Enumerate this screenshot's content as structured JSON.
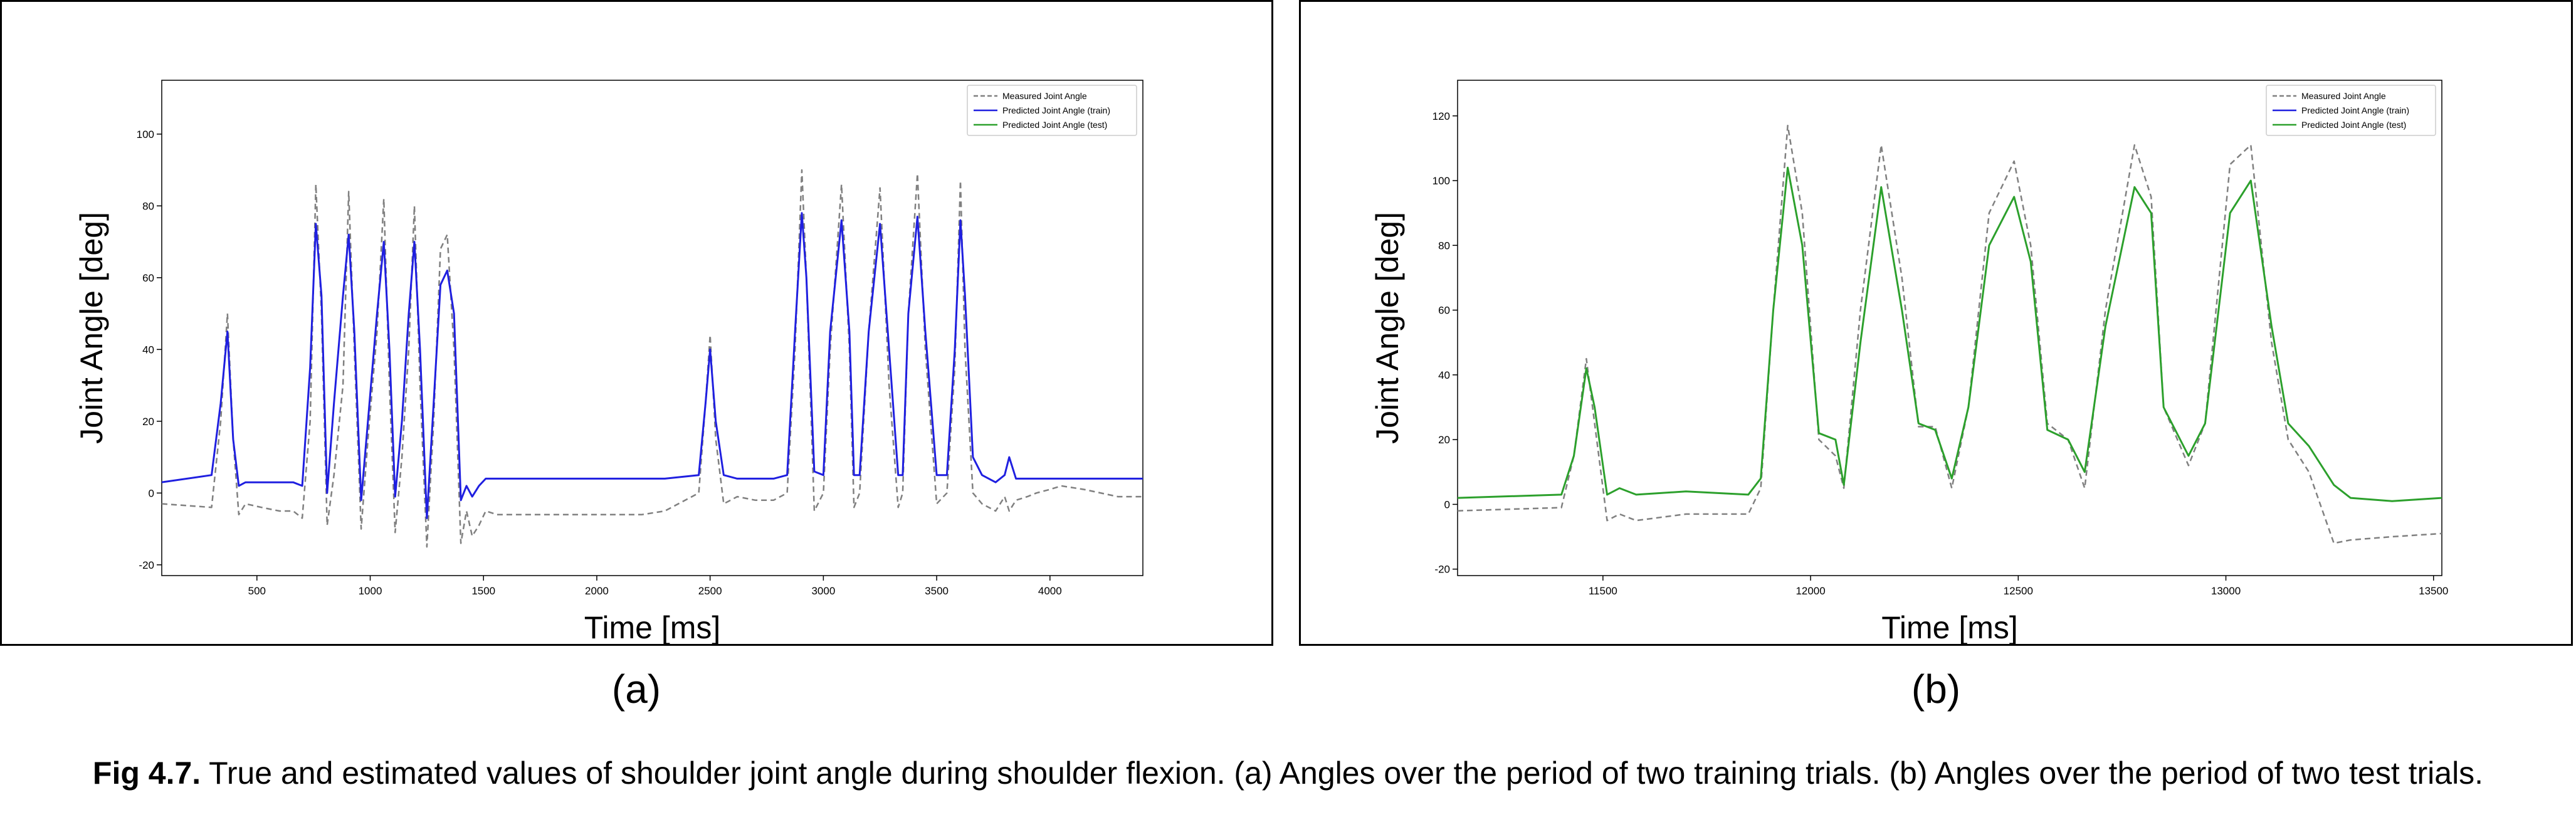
{
  "figure": {
    "caption_prefix": "Fig 4.7.",
    "caption_text": " True and estimated values of shoulder joint angle during shoulder flexion. (a) Angles over the period of two training trials. (b) Angles over the period of two test trials."
  },
  "chart_data": [
    {
      "type": "line",
      "panel_label": "(a)",
      "xlabel": "Time [ms]",
      "ylabel": "Joint Angle [deg]",
      "xlim": [
        80,
        4410
      ],
      "ylim": [
        -23,
        115
      ],
      "xticks": [
        500,
        1000,
        1500,
        2000,
        2500,
        3000,
        3500,
        4000
      ],
      "yticks": [
        -20,
        0,
        20,
        40,
        60,
        80,
        100
      ],
      "grid": false,
      "legend_position": "top-right",
      "legend": [
        "Measured Joint Angle",
        "Predicted Joint Angle (train)",
        "Predicted Joint Angle (test)"
      ],
      "colors": {
        "measured": "#808080",
        "train": "#1f1fe0",
        "test": "#2ca02c"
      },
      "series": [
        {
          "name": "Measured Joint Angle",
          "style": "dashed",
          "x": [
            80,
            300,
            340,
            370,
            395,
            420,
            450,
            520,
            600,
            660,
            700,
            735,
            760,
            785,
            810,
            840,
            880,
            905,
            930,
            960,
            990,
            1030,
            1060,
            1085,
            1110,
            1140,
            1170,
            1195,
            1220,
            1250,
            1280,
            1310,
            1340,
            1370,
            1400,
            1425,
            1450,
            1480,
            1510,
            1560,
            1650,
            2000,
            2200,
            2300,
            2450,
            2480,
            2500,
            2525,
            2560,
            2620,
            2700,
            2780,
            2840,
            2875,
            2905,
            2925,
            2960,
            3000,
            3030,
            3080,
            3115,
            3135,
            3160,
            3200,
            3250,
            3290,
            3330,
            3350,
            3375,
            3415,
            3450,
            3500,
            3545,
            3580,
            3605,
            3625,
            3660,
            3700,
            3760,
            3800,
            3820,
            3850,
            3900,
            3940,
            4000,
            4050,
            4150,
            4300,
            4410
          ],
          "y": [
            -3,
            -4,
            20,
            50,
            15,
            -6,
            -3,
            -4,
            -5,
            -5,
            -7,
            20,
            86,
            50,
            -9,
            5,
            30,
            84,
            40,
            -10,
            15,
            45,
            82,
            30,
            -11,
            10,
            40,
            80,
            30,
            -15,
            20,
            68,
            72,
            40,
            -14,
            -5,
            -12,
            -9,
            -5,
            -6,
            -6,
            -6,
            -6,
            -5,
            0,
            25,
            44,
            15,
            -3,
            -1,
            -2,
            -2,
            0,
            40,
            90,
            60,
            -5,
            0,
            40,
            86,
            40,
            -4,
            0,
            45,
            85,
            30,
            -4,
            0,
            50,
            89,
            40,
            -3,
            0,
            35,
            87,
            40,
            0,
            -3,
            -5,
            -1,
            -5,
            -2,
            -1,
            0,
            1,
            2,
            1,
            -1,
            -1
          ]
        },
        {
          "name": "Predicted Joint Angle (train)",
          "style": "solid",
          "x": [
            80,
            300,
            340,
            370,
            395,
            420,
            450,
            520,
            600,
            660,
            700,
            735,
            760,
            785,
            810,
            840,
            880,
            905,
            930,
            960,
            990,
            1030,
            1060,
            1085,
            1110,
            1140,
            1170,
            1195,
            1220,
            1250,
            1280,
            1310,
            1340,
            1370,
            1400,
            1425,
            1450,
            1480,
            1510,
            1560,
            1650,
            2000,
            2200,
            2300,
            2450,
            2480,
            2500,
            2525,
            2560,
            2620,
            2700,
            2780,
            2840,
            2875,
            2905,
            2925,
            2960,
            3000,
            3030,
            3080,
            3115,
            3135,
            3160,
            3200,
            3250,
            3290,
            3330,
            3350,
            3375,
            3415,
            3450,
            3500,
            3545,
            3580,
            3605,
            3625,
            3660,
            3700,
            3760,
            3800,
            3820,
            3850,
            3900,
            3940,
            4000,
            4050,
            4150,
            4300,
            4410
          ],
          "y": [
            3,
            5,
            25,
            45,
            15,
            2,
            3,
            3,
            3,
            3,
            2,
            35,
            75,
            55,
            0,
            25,
            55,
            72,
            45,
            -2,
            20,
            50,
            70,
            40,
            -1,
            20,
            50,
            70,
            40,
            -7,
            25,
            58,
            62,
            50,
            -2,
            2,
            -1,
            2,
            4,
            4,
            4,
            4,
            4,
            4,
            5,
            25,
            40,
            20,
            5,
            4,
            4,
            4,
            5,
            45,
            78,
            60,
            6,
            5,
            45,
            76,
            45,
            5,
            5,
            45,
            75,
            40,
            5,
            5,
            50,
            77,
            45,
            5,
            5,
            40,
            76,
            55,
            10,
            5,
            3,
            5,
            10,
            4,
            4,
            4,
            4,
            4,
            4,
            4,
            4
          ]
        }
      ]
    },
    {
      "type": "line",
      "panel_label": "(b)",
      "xlabel": "Time [ms]",
      "ylabel": "Joint Angle [deg]",
      "xlim": [
        11150,
        13520
      ],
      "ylim": [
        -22,
        131
      ],
      "xticks": [
        11500,
        12000,
        12500,
        13000,
        13500
      ],
      "yticks": [
        -20,
        0,
        20,
        40,
        60,
        80,
        100,
        120
      ],
      "grid": false,
      "legend_position": "top-right",
      "legend": [
        "Measured Joint Angle",
        "Predicted Joint Angle (train)",
        "Predicted Joint Angle (test)"
      ],
      "colors": {
        "measured": "#808080",
        "train": "#1f1fe0",
        "test": "#2ca02c"
      },
      "series": [
        {
          "name": "Measured Joint Angle",
          "style": "dashed",
          "x": [
            11150,
            11400,
            11430,
            11460,
            11480,
            11510,
            11540,
            11580,
            11700,
            11850,
            11880,
            11910,
            11945,
            11980,
            12020,
            12060,
            12080,
            12120,
            12170,
            12220,
            12260,
            12300,
            12340,
            12380,
            12430,
            12490,
            12530,
            12570,
            12620,
            12660,
            12710,
            12780,
            12820,
            12850,
            12910,
            12950,
            13010,
            13060,
            13110,
            13150,
            13200,
            13260,
            13300,
            13400,
            13520
          ],
          "y": [
            -2,
            -1,
            15,
            45,
            25,
            -5,
            -3,
            -5,
            -3,
            -3,
            5,
            60,
            117,
            90,
            20,
            15,
            5,
            60,
            111,
            70,
            24,
            24,
            5,
            30,
            90,
            106,
            80,
            25,
            20,
            5,
            60,
            111,
            95,
            30,
            12,
            25,
            105,
            111,
            50,
            20,
            10,
            -12,
            -11,
            -10,
            -9
          ]
        },
        {
          "name": "Predicted Joint Angle (test)",
          "style": "solid",
          "x": [
            11150,
            11400,
            11430,
            11460,
            11480,
            11510,
            11540,
            11580,
            11700,
            11850,
            11880,
            11910,
            11945,
            11980,
            12020,
            12060,
            12080,
            12120,
            12170,
            12220,
            12260,
            12300,
            12340,
            12380,
            12430,
            12490,
            12530,
            12570,
            12620,
            12660,
            12710,
            12780,
            12820,
            12850,
            12910,
            12950,
            13010,
            13060,
            13110,
            13150,
            13200,
            13260,
            13300,
            13400,
            13520
          ],
          "y": [
            2,
            3,
            15,
            42,
            30,
            3,
            5,
            3,
            4,
            3,
            8,
            60,
            104,
            80,
            22,
            20,
            6,
            50,
            98,
            60,
            25,
            23,
            8,
            30,
            80,
            95,
            75,
            23,
            20,
            10,
            55,
            98,
            90,
            30,
            15,
            25,
            90,
            100,
            55,
            25,
            18,
            6,
            2,
            1,
            2
          ]
        }
      ]
    }
  ]
}
